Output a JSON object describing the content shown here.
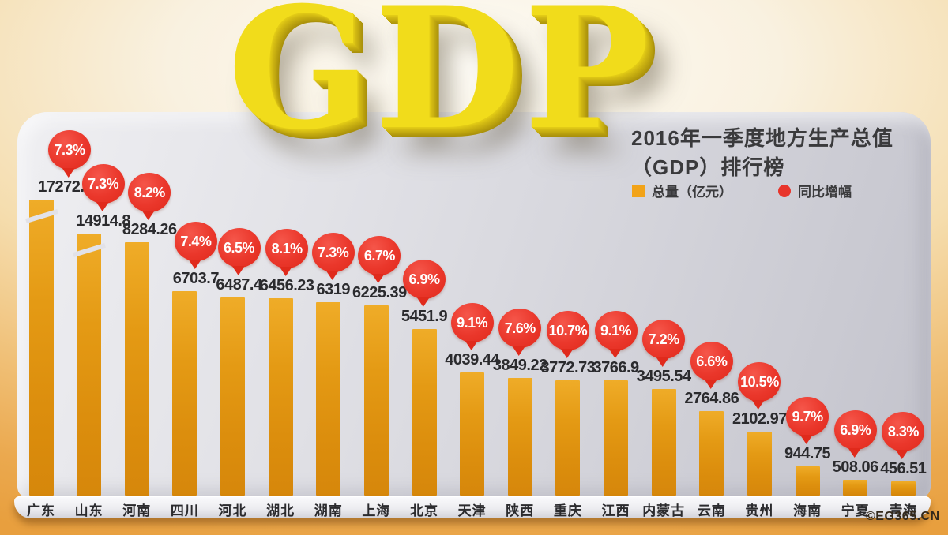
{
  "header": {
    "logo_text": "GDP",
    "title_line1": "2016年一季度地方生产总值",
    "title_line2": "（GDP）排行榜"
  },
  "legend": {
    "items": [
      {
        "label": "总量（亿元）",
        "swatch": "square",
        "color": "#F2A318"
      },
      {
        "label": "同比增幅",
        "swatch": "circle",
        "color": "#E8352B"
      }
    ]
  },
  "footer": {
    "credit": "©EG365.CN"
  },
  "colors": {
    "bar_top": "#EFAC28",
    "bar_bottom": "#D6870B",
    "bubble_red": "#E8352B",
    "board_gray": "#D6D6DC",
    "background_orange": "#EBA94F",
    "text_dark": "#2B2B2E",
    "gdp_gold": "#F1DC1B"
  },
  "chart_data": {
    "type": "bar",
    "title": "2016年一季度地方生产总值（GDP）排行榜",
    "unit": "亿元",
    "legend_position": "top-right",
    "grid": false,
    "axis_break_categories": [
      "广东",
      "山东"
    ],
    "categories": [
      "广东",
      "山东",
      "河南",
      "四川",
      "河北",
      "湖北",
      "湖南",
      "上海",
      "北京",
      "天津",
      "陕西",
      "重庆",
      "江西",
      "内蒙古",
      "云南",
      "贵州",
      "海南",
      "宁夏",
      "青海"
    ],
    "series": [
      {
        "name": "总量（亿元）",
        "values": [
          17272.24,
          14914.8,
          8284.26,
          6703.7,
          6487.4,
          6456.23,
          6319,
          6225.39,
          5451.9,
          4039.44,
          3849.22,
          3772.73,
          3766.9,
          3495.54,
          2764.86,
          2102.97,
          944.75,
          508.06,
          456.51
        ]
      },
      {
        "name": "同比增幅",
        "values": [
          "7.3%",
          "7.3%",
          "8.2%",
          "7.4%",
          "6.5%",
          "8.1%",
          "7.3%",
          "6.7%",
          "6.9%",
          "9.1%",
          "7.6%",
          "10.7%",
          "9.1%",
          "7.2%",
          "6.6%",
          "10.5%",
          "9.7%",
          "6.9%",
          "8.3%"
        ]
      }
    ],
    "value_labels": [
      "17272.24",
      "14914.8",
      "8284.26",
      "6703.7",
      "6487.4",
      "6456.23",
      "6319",
      "6225.39",
      "5451.9",
      "4039.44",
      "3849.22",
      "3772.73",
      "3766.9",
      "3495.54",
      "2764.86",
      "2102.97",
      "944.75",
      "508.06",
      "456.51"
    ]
  }
}
